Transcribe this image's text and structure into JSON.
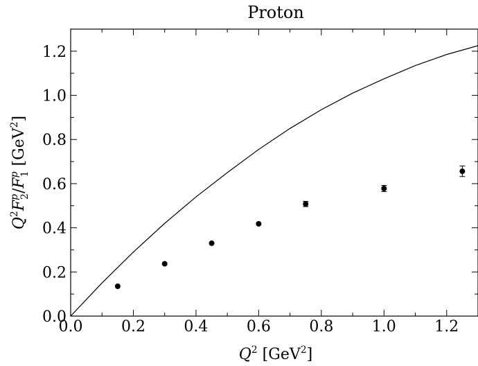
{
  "chart_data": {
    "type": "scatter",
    "title": "Proton",
    "xlabel": {
      "base": "Q",
      "sup": "2",
      "unit_open": " [GeV",
      "unit_sup": "2",
      "unit_close": "]"
    },
    "ylabel": {
      "q": "Q",
      "q_sup": "2",
      "f2": "F",
      "f2_sub": "2",
      "f2_sup": "p",
      "slash": "/",
      "f1": "F",
      "f1_sub": "1",
      "f1_sup": "p",
      "unit_open": " [GeV",
      "unit_sup": "2",
      "unit_close": "]"
    },
    "xlim": [
      0.0,
      1.3
    ],
    "ylim": [
      0.0,
      1.3
    ],
    "xticks": [
      "0.0",
      "0.2",
      "0.4",
      "0.6",
      "0.8",
      "1.0",
      "1.2"
    ],
    "yticks": [
      "0.0",
      "0.2",
      "0.4",
      "0.6",
      "0.8",
      "1.0",
      "1.2"
    ],
    "series": [
      {
        "kind": "curve",
        "x": [
          0.0,
          0.1,
          0.2,
          0.3,
          0.4,
          0.5,
          0.6,
          0.7,
          0.8,
          0.9,
          1.0,
          1.1,
          1.2,
          1.3
        ],
        "y": [
          0.0,
          0.15,
          0.29,
          0.42,
          0.54,
          0.65,
          0.755,
          0.85,
          0.935,
          1.01,
          1.075,
          1.135,
          1.185,
          1.225
        ]
      },
      {
        "kind": "points",
        "x": [
          0.15,
          0.3,
          0.45,
          0.6,
          0.75,
          1.0,
          1.25
        ],
        "y": [
          0.135,
          0.237,
          0.33,
          0.418,
          0.508,
          0.578,
          0.656
        ],
        "yerr": [
          0.0,
          0.0,
          0.0,
          0.0,
          0.012,
          0.014,
          0.024
        ]
      }
    ],
    "grid": false,
    "legend": "none"
  }
}
